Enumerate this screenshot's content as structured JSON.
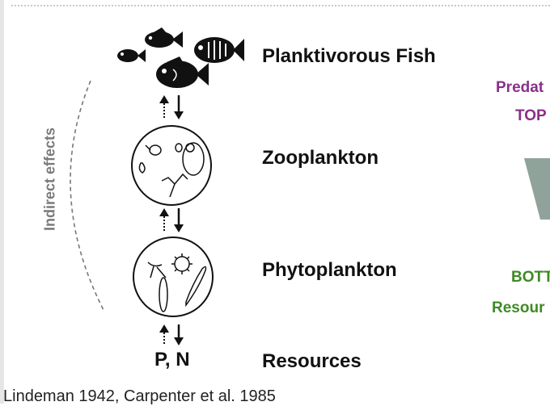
{
  "diagram": {
    "levels": [
      {
        "name": "Planktivorous Fish"
      },
      {
        "name": "Zooplankton"
      },
      {
        "name": "Phytoplankton"
      },
      {
        "name": "Resources",
        "nutrients_label": "P, N"
      }
    ],
    "side_label": "Indirect effects",
    "right_panel": {
      "top_line1": "Predat",
      "top_line2": "TOP",
      "bottom_line1": "BOTT",
      "bottom_line2": "Resour",
      "top_color": "#8a2f8a",
      "bottom_color": "#3f8a25",
      "arrow_color": "#8fa39a"
    }
  },
  "citation": "Lindeman 1942, Carpenter et al. 1985"
}
